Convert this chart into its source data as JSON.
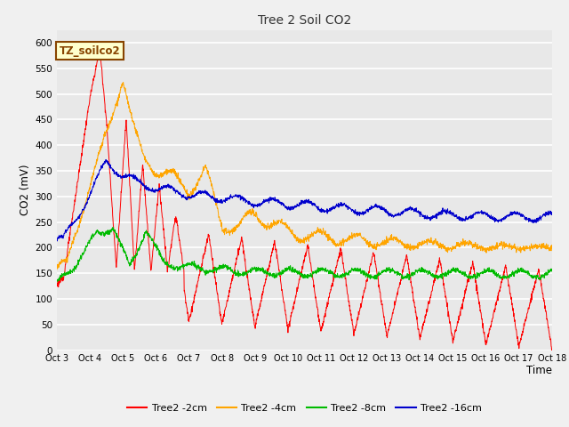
{
  "title": "Tree 2 Soil CO2",
  "ylabel": "CO2 (mV)",
  "xlabel": "Time",
  "xlim": [
    0,
    15
  ],
  "ylim": [
    0,
    625
  ],
  "yticks": [
    0,
    50,
    100,
    150,
    200,
    250,
    300,
    350,
    400,
    450,
    500,
    550,
    600
  ],
  "xtick_labels": [
    "Oct 3",
    "Oct 4",
    "Oct 5",
    "Oct 6",
    "Oct 7",
    "Oct 8",
    "Oct 9",
    "Oct 10",
    "Oct 11",
    "Oct 12",
    "Oct 13",
    "Oct 14",
    "Oct 15",
    "Oct 16",
    "Oct 17",
    "Oct 18"
  ],
  "legend_labels": [
    "Tree2 -2cm",
    "Tree2 -4cm",
    "Tree2 -8cm",
    "Tree2 -16cm"
  ],
  "colors": {
    "red": "#FF0000",
    "orange": "#FFA500",
    "green": "#00BB00",
    "blue": "#0000CC"
  },
  "annotation_text": "TZ_soilco2",
  "annotation_color": "#884400",
  "annotation_bg": "#FFFFCC",
  "background_color": "#E8E8E8",
  "plot_bg": "#E8E8E8",
  "fig_bg": "#F0F0F0",
  "grid_color": "#FFFFFF"
}
